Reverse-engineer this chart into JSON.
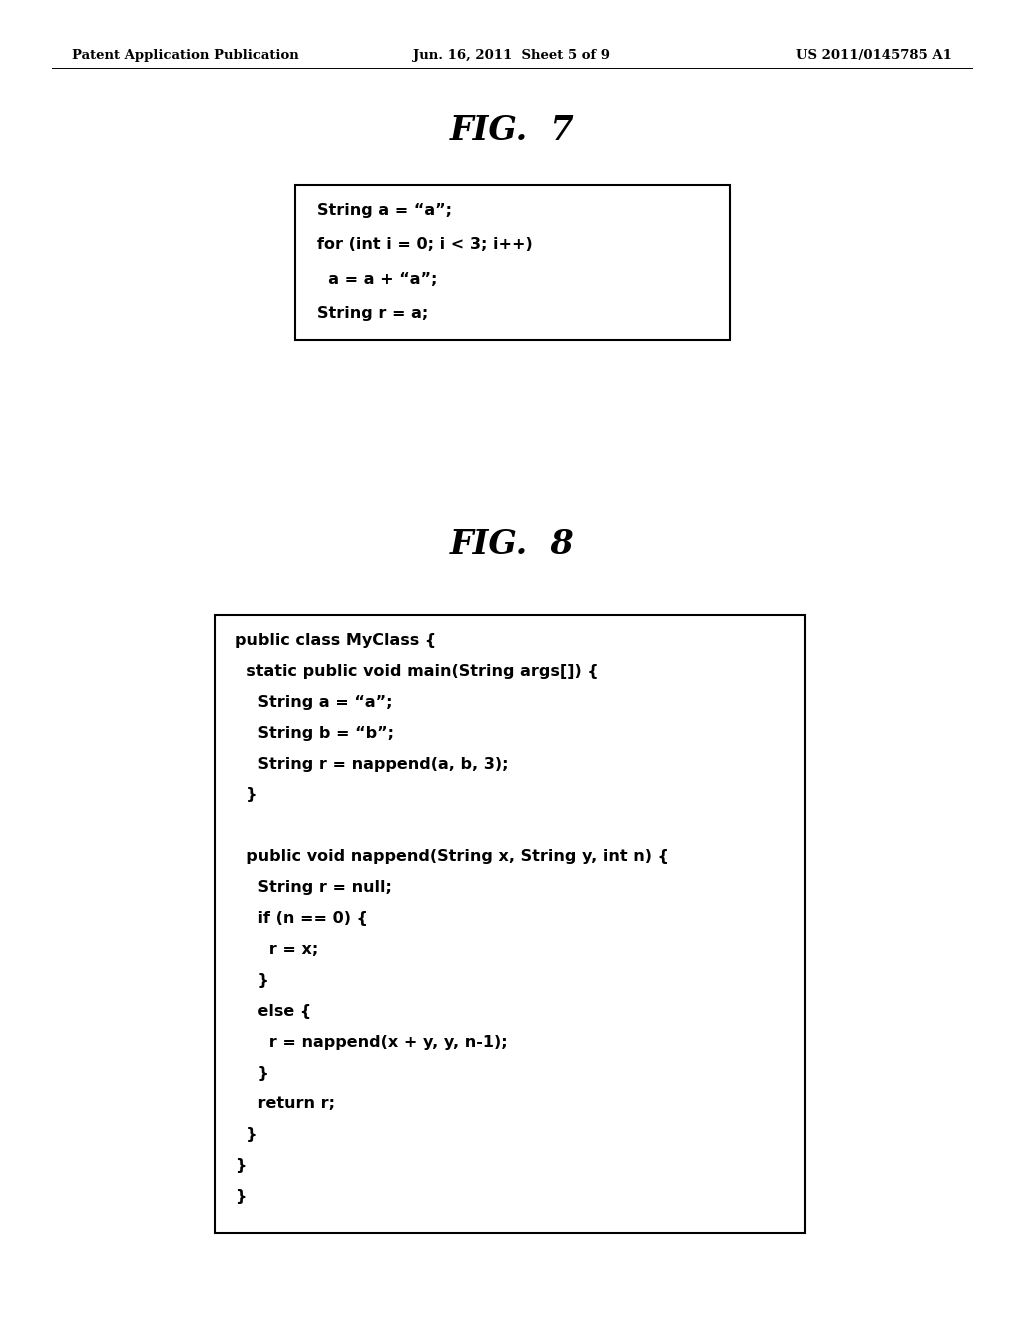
{
  "bg_color": "#ffffff",
  "header_left": "Patent Application Publication",
  "header_center": "Jun. 16, 2011  Sheet 5 of 9",
  "header_right": "US 2011/0145785 A1",
  "header_fontsize": 9.5,
  "fig7_title": "FIG.  7",
  "fig7_title_fontsize": 24,
  "fig7_code_lines": [
    "String a = “a”;",
    "for (int i = 0; i < 3; i++)",
    "  a = a + “a”;",
    "String r = a;"
  ],
  "fig8_title": "FIG.  8",
  "fig8_title_fontsize": 24,
  "fig8_code_lines": [
    "public class MyClass {",
    "  static public void main(String args[]) {",
    "    String a = “a”;",
    "    String b = “b”;",
    "    String r = nappend(a, b, 3);",
    "  }",
    "",
    "  public void nappend(String x, String y, int n) {",
    "    String r = null;",
    "    if (n == 0) {",
    "      r = x;",
    "    }",
    "    else {",
    "      r = nappend(x + y, y, n-1);",
    "    }",
    "    return r;",
    "  }",
    "}",
    "}"
  ],
  "code_fontsize": 11.5
}
